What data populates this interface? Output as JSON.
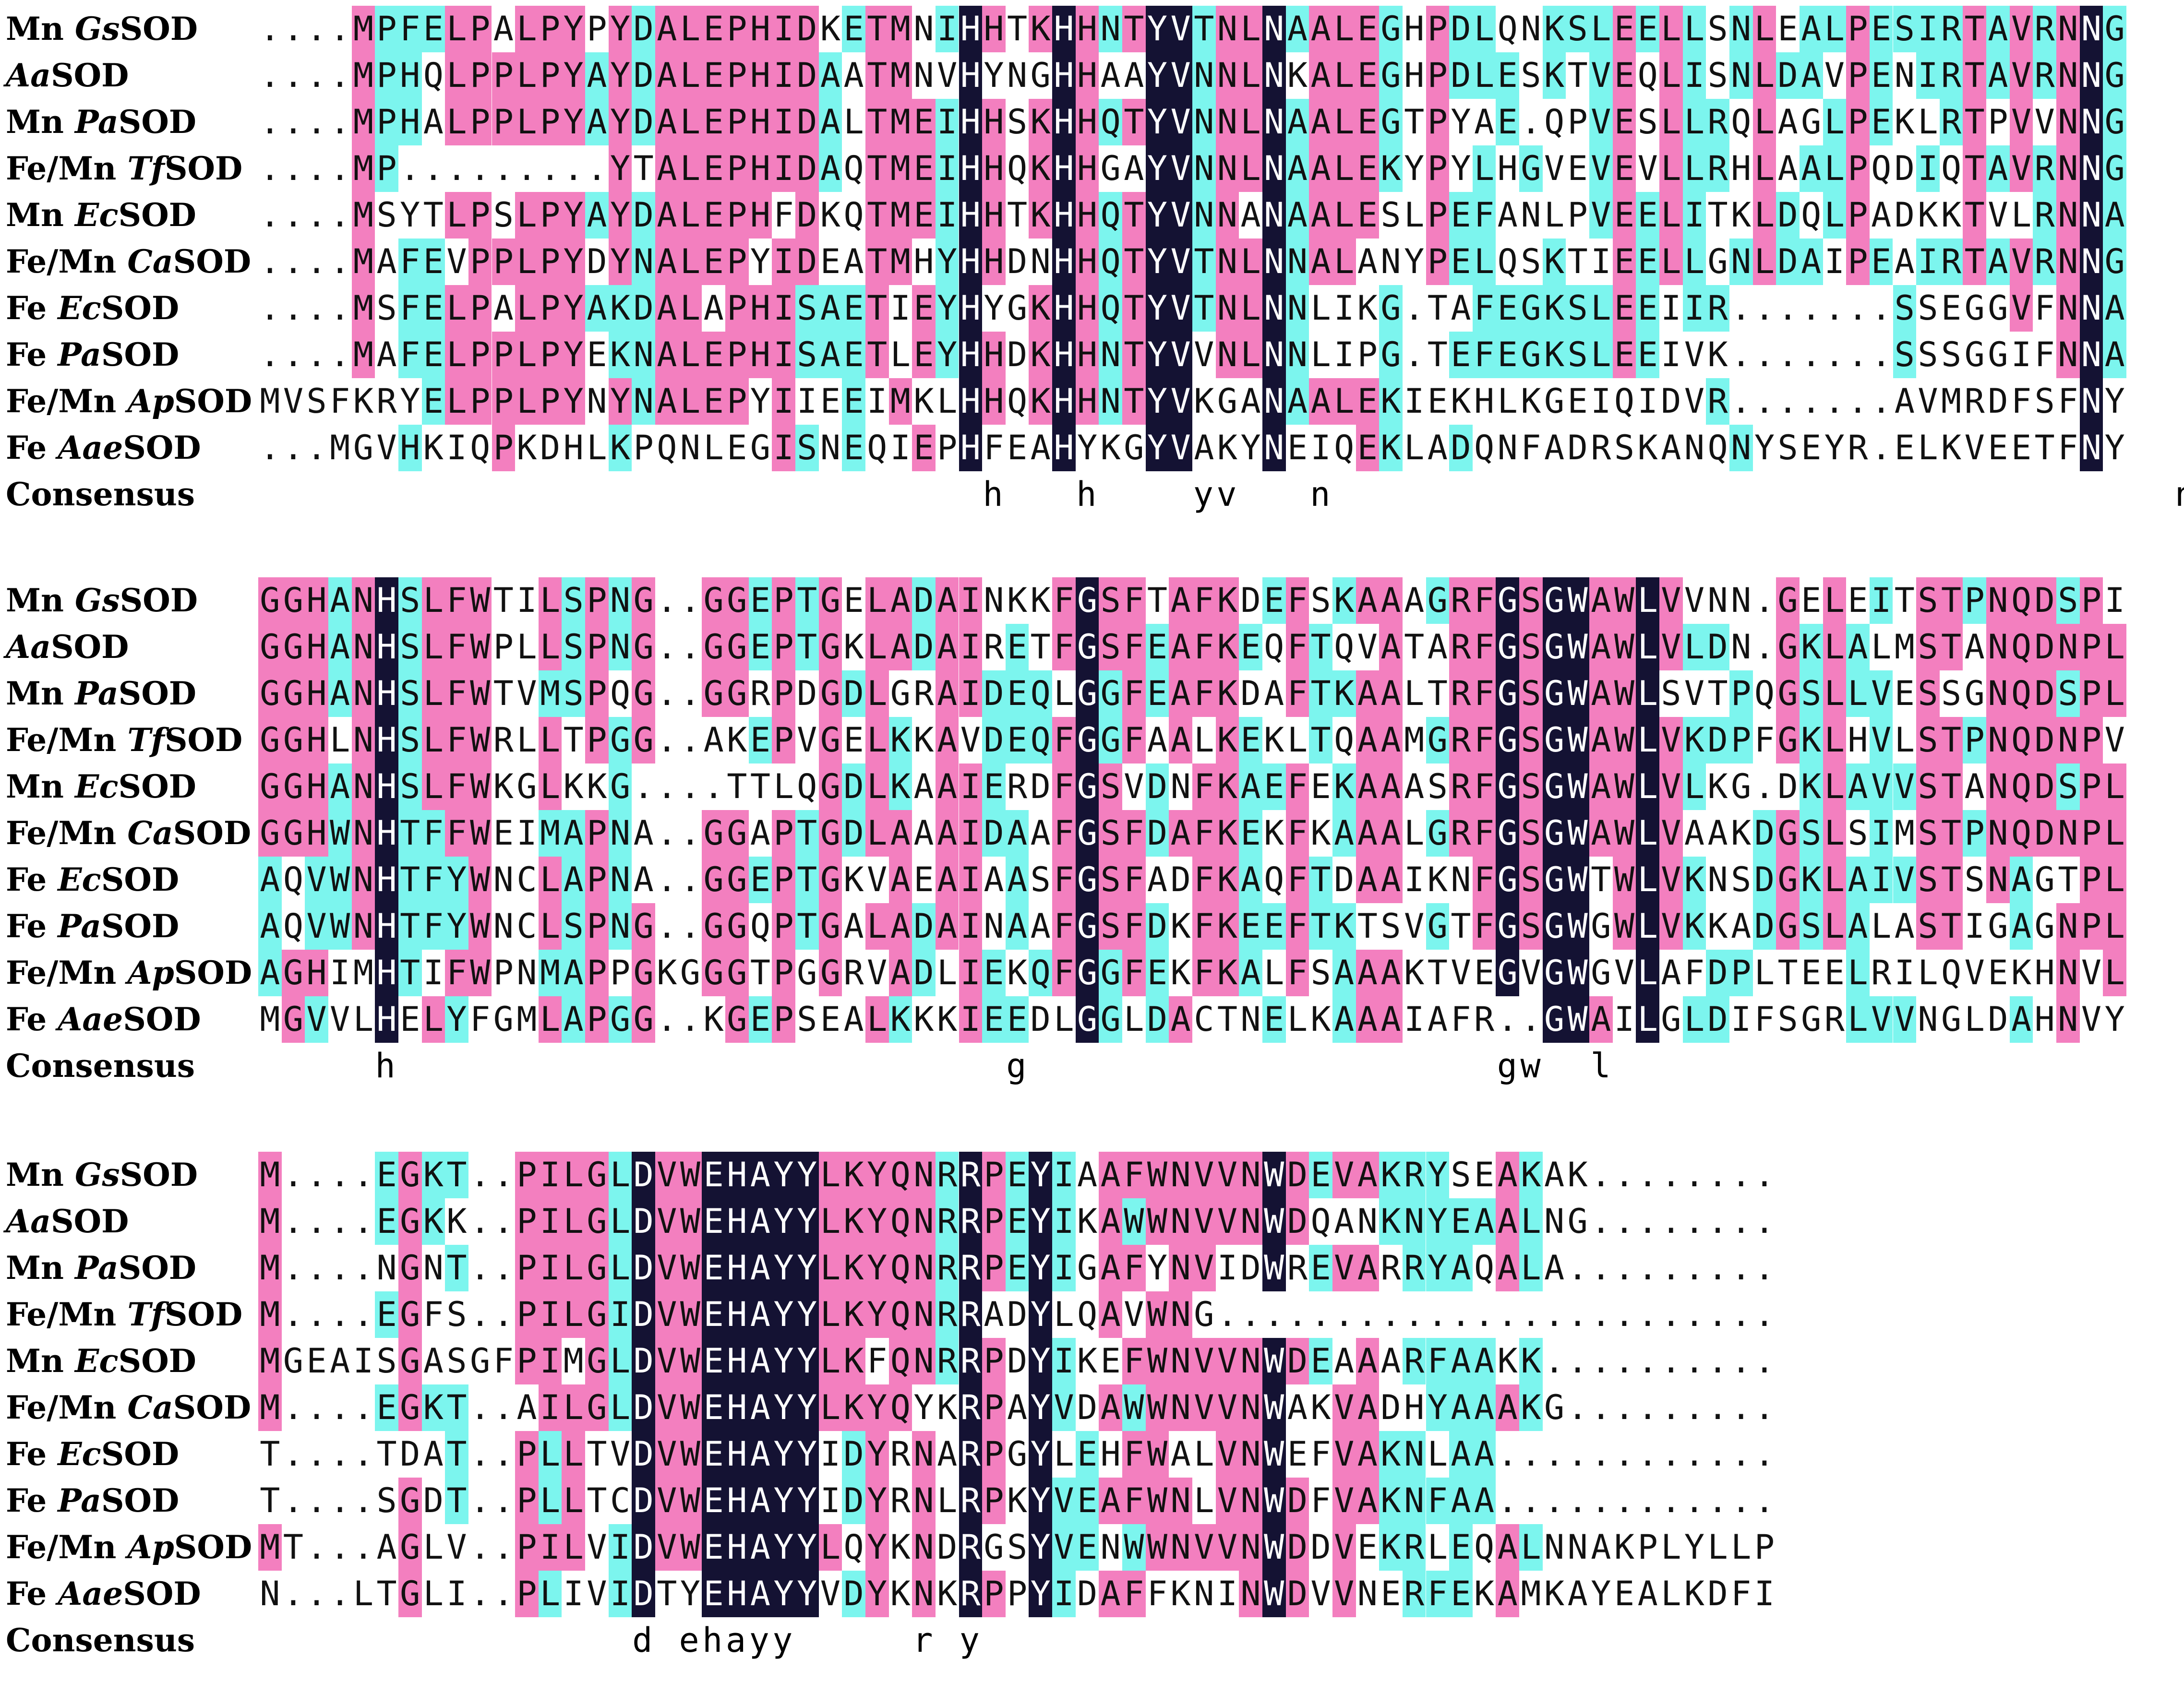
{
  "colors": {
    "identical": "#141233",
    "high_similarity": "#f37fbf",
    "similarity": "#7cf5ee",
    "background": "#ffffff"
  },
  "consensus_label": "Consensus",
  "rows": [
    {
      "pre": "Mn ",
      "italic": "Gs",
      "post": "SOD"
    },
    {
      "pre": "",
      "italic": "Aa",
      "post": "SOD"
    },
    {
      "pre": "Mn ",
      "italic": "Pa",
      "post": "SOD"
    },
    {
      "pre": "Fe/Mn ",
      "italic": "Tf",
      "post": "SOD"
    },
    {
      "pre": "Mn ",
      "italic": "Ec",
      "post": "SOD"
    },
    {
      "pre": "Fe/Mn ",
      "italic": "Ca",
      "post": "SOD"
    },
    {
      "pre": "Fe ",
      "italic": "Ec",
      "post": "SOD"
    },
    {
      "pre": "Fe ",
      "italic": "Pa",
      "post": "SOD"
    },
    {
      "pre": "Fe/Mn ",
      "italic": "Ap",
      "post": "SOD"
    },
    {
      "pre": "Fe ",
      "italic": "Aae",
      "post": "SOD"
    }
  ],
  "blocks": [
    {
      "sequences": [
        "....MPFELPALPYPYDALEPHIDKETMNIHHTKHHNTYVTNLNAALEGHPDLQNKSLEELLSNLEALPESIRTAVRNNG",
        "....MPHQLPPLPYAYDALEPHIDAATMNVHYNGHHAAYVNNLNKALEGHPDLESKTVEQLISNLDAVPENIRTAVRNNG",
        "....MPHALPPLPYAYDALEPHIDALTMEIHHSKHHQTYVNNLNAALEGTPYAE.QPVESLLRQLAGLPEKLRTPVVNNG",
        "....MP.........YTALEPHIDAQTMEIHHQKHHGAYVNNLNAALEKYPYLHGVEVEVLLRHLAALPQDIQTAVRNNG",
        "....MSYTLPSLPYAYDALEPHFDKQTMEIHHTKHHQTYVNNANAALESLPEFANLPVEELITKLDQLPADKKTVLRNNA",
        "....MAFEVPPLPYDYNALEPYIDEATMHYHHDNHHQTYVTNLNNALANYPELQSKTIEELLGNLDAIPEAIRTAVRNNG",
        "....MSFELPALPYAKDALAPHISAETIEYHYGKHHQTYVTNLNNLIKG.TAFEGKSLEEIIR.......SSEGGVFNNA",
        "....MAFELPPLPYEKNALEPHISAETLEYHHDKHHNTYVVNLNNLIPG.TEFEGKSLEEIVK.......SSSGGIFNNA",
        "MVSFKRYELPPLPYNYNALEPYIIEEIMKLHHQKHHNTYVKGANAALEKIEKHLKGEIQIDVR.......AVMRDFSFNY",
        "...MGVHKIQPKDHLKPQNLEGISNEQIEPHFEAHYKGYVAKYNEIQEKLADQNFADRSKANQNYSEYR.ELKVEETFNY"
      ],
      "consensus": "                               h   h    yv   n                                    n "
    },
    {
      "sequences": [
        "GGHANHSLFWTILSPNG..GGEPTGELADAINKKFGSFTAFKDEFSKAAAGRFGSGWAWLVVNN.GELEITSTPNQDSPI",
        "GGHANHSLFWPLLSPNG..GGEPTGKLADAIRETFGSFEAFKEQFTQVATARFGSGWAWLVLDN.GKLALMSTANQDNPL",
        "GGHANHSLFWTVMSPQG..GGRPDGDLGRAIDEQLGGFEAFKDAFTKAALTRFGSGWAWLSVTPQGSLLVESSGNQDSPL",
        "GGHLNHSLFWRLLTPGG..AKEPVGELKKAVDEQFGGFAALKEKLTQAAMGRFGSGWAWLVKDPFGKLHVLSTPNQDNPV",
        "GGHANHSLFWKGLKKG....TTLQGDLKAAIERDFGSVDNFKAEFEKAAASRFGSGWAWLVLKG.DKLAVVSTANQDSPL",
        "GGHWNHTFFWEIMAPNA..GGAPTGDLAAAIDAAFGSFDAFKEKFKAAALGRFGSGWAWLVAAKDGSLSIMSTPNQDNPL",
        "AQVWNHTFYWNCLAPNA..GGEPTGKVAEAIAASFGSFADFKAQFTDAAIKNFGSGWTWLVKNSDGKLAIVSTSNAGTPL",
        "AQVWNHTFYWNCLSPNG..GGQPTGALADAINAAFGSFDKFKEEFTKTSVGTFGSGWGWLVKKADGSLALASTIGAGNPL",
        "AGHIMHTIFWPNMAPPGKGGGTPGGRVADLIEKQFGGFEKFKALFSAAAKTVEGVGWGVLAFDPLTEELRILQVEKHNVL",
        "MGVVLHELYFGMLAPGG..KGEPSEALKKKIEEDLGGLDACTNELKAAAIAFR..GWAILGLDIFSGRLVVNGLDAHNVY"
      ],
      "consensus": "     h                          g                    gw  l                        "
    },
    {
      "sequences": [
        "M....EGKT..PILGLDVWEHAYYLKYQNRRPEYIAAFWNVVNWDEVAKRYSEAKAK........",
        "M....EGKK..PILGLDVWEHAYYLKYQNRRPEYIKAWWNVVNWDQANKNYEAALNG........",
        "M....NGNT..PILGLDVWEHAYYLKYQNRRPEYIGAFYNVIDWREVARRYAQALA.........",
        "M....EGFS..PILGIDVWEHAYYLKYQNRRADYLQAVWNG........................",
        "MGEAISGASGFPIMGLDVWEHAYYLKFQNRRPDYIKEFWNVVNWDEAAARFAAKK..........",
        "M....EGKT..AILGLDVWEHAYYLKYQYKRPAYVDAWWNVVNWAKVADHYAAAKG.........",
        "T....TDAT..PLLTVDVWEHAYYIDYRNARPGYLEHFWALVNWEFVAKNLAA............",
        "T....SGDT..PLLTCDVWEHAYYIDYRNLRPKYVEAFWNLVNWDFVAKNFAA............",
        "MT...AGLV..PILVIDVWEHAYYLQYKNDRGSYVENWWNVVNWDDVEKRLEQALNNAKPLYLLP",
        "N...LTGLI..PLIVIDTYEHAYYVDYKNKRPPYIDAFFKNINWDVVNERFEKAMKAYEALKDFI"
      ],
      "consensus": "                d ehayy     r y                                  "
    }
  ]
}
